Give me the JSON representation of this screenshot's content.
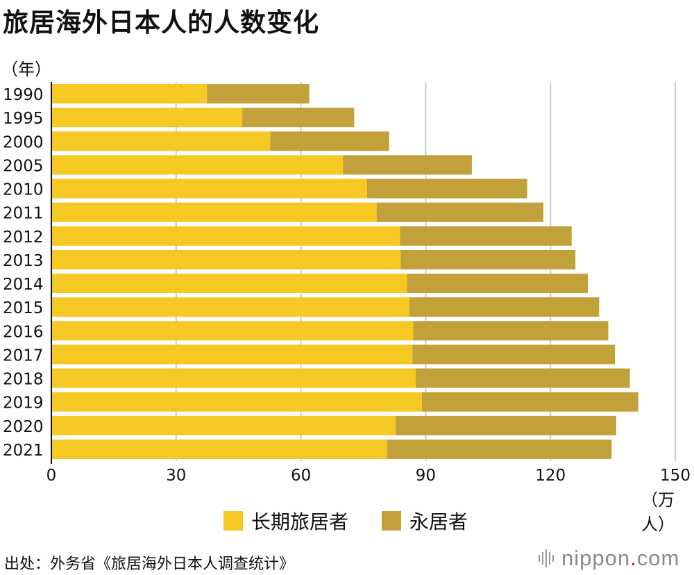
{
  "title": "旅居海外日本人的人数变化",
  "colors": {
    "long_term": "#F5C824",
    "permanent": "#C2A13A",
    "grid": "#cccccc",
    "axis": "#111111"
  },
  "chart_data": {
    "type": "bar",
    "orientation": "horizontal",
    "stacked": true,
    "title": "旅居海外日本人的人数变化",
    "ylabel": "（年）",
    "xlabel": "（万人）",
    "categories": [
      "1990",
      "1995",
      "2000",
      "2005",
      "2010",
      "2011",
      "2012",
      "2013",
      "2014",
      "2015",
      "2016",
      "2017",
      "2018",
      "2019",
      "2020",
      "2021"
    ],
    "series": [
      {
        "name": "长期旅居者",
        "color": "#F5C824",
        "values": [
          37.4,
          45.9,
          52.6,
          70.1,
          75.9,
          78.2,
          83.8,
          84.0,
          85.5,
          86.1,
          87.0,
          86.8,
          87.6,
          89.1,
          82.8,
          80.7
        ]
      },
      {
        "name": "永居者",
        "color": "#C2A13A",
        "values": [
          24.6,
          26.9,
          28.6,
          31.0,
          38.5,
          40.1,
          41.3,
          42.0,
          43.5,
          45.6,
          46.9,
          48.7,
          51.5,
          52.0,
          53.0,
          54.0
        ]
      }
    ],
    "xlim": [
      0,
      150
    ],
    "xticks": [
      0,
      30,
      60,
      90,
      120,
      150
    ],
    "grid": "vertical",
    "legend": "bottom-center"
  },
  "legend": {
    "long_term": "长期旅居者",
    "permanent": "永居者"
  },
  "source": "出处：外务省《旅居海外日本人调查统计》",
  "logo": {
    "main": "nippon",
    "dot": ".",
    "suffix": "com"
  }
}
